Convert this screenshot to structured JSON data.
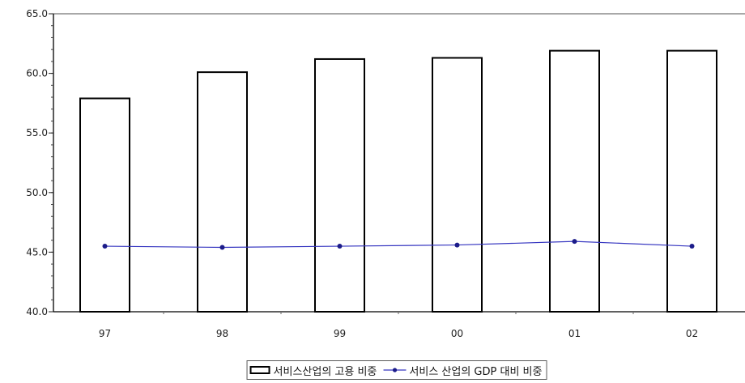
{
  "chart_data": {
    "type": "bar",
    "categories": [
      "97",
      "98",
      "99",
      "00",
      "01",
      "02"
    ],
    "series": [
      {
        "name": "서비스산업의 고용 비중",
        "type": "bar",
        "values": [
          57.9,
          60.1,
          61.2,
          61.3,
          61.9,
          61.9
        ],
        "color": "#ffffff",
        "stroke": "#000000"
      },
      {
        "name": "서비스 산업의 GDP 대비 비중",
        "type": "line",
        "values": [
          45.5,
          45.4,
          45.5,
          45.6,
          45.9,
          45.5
        ],
        "color": "#3535c0",
        "marker_color": "#1c1c8a"
      }
    ],
    "ylim": [
      40,
      65
    ],
    "yticks": [
      "40.0",
      "45.0",
      "50.0",
      "55.0",
      "60.0",
      "65.0"
    ],
    "grid": false,
    "legend": "bottom"
  }
}
